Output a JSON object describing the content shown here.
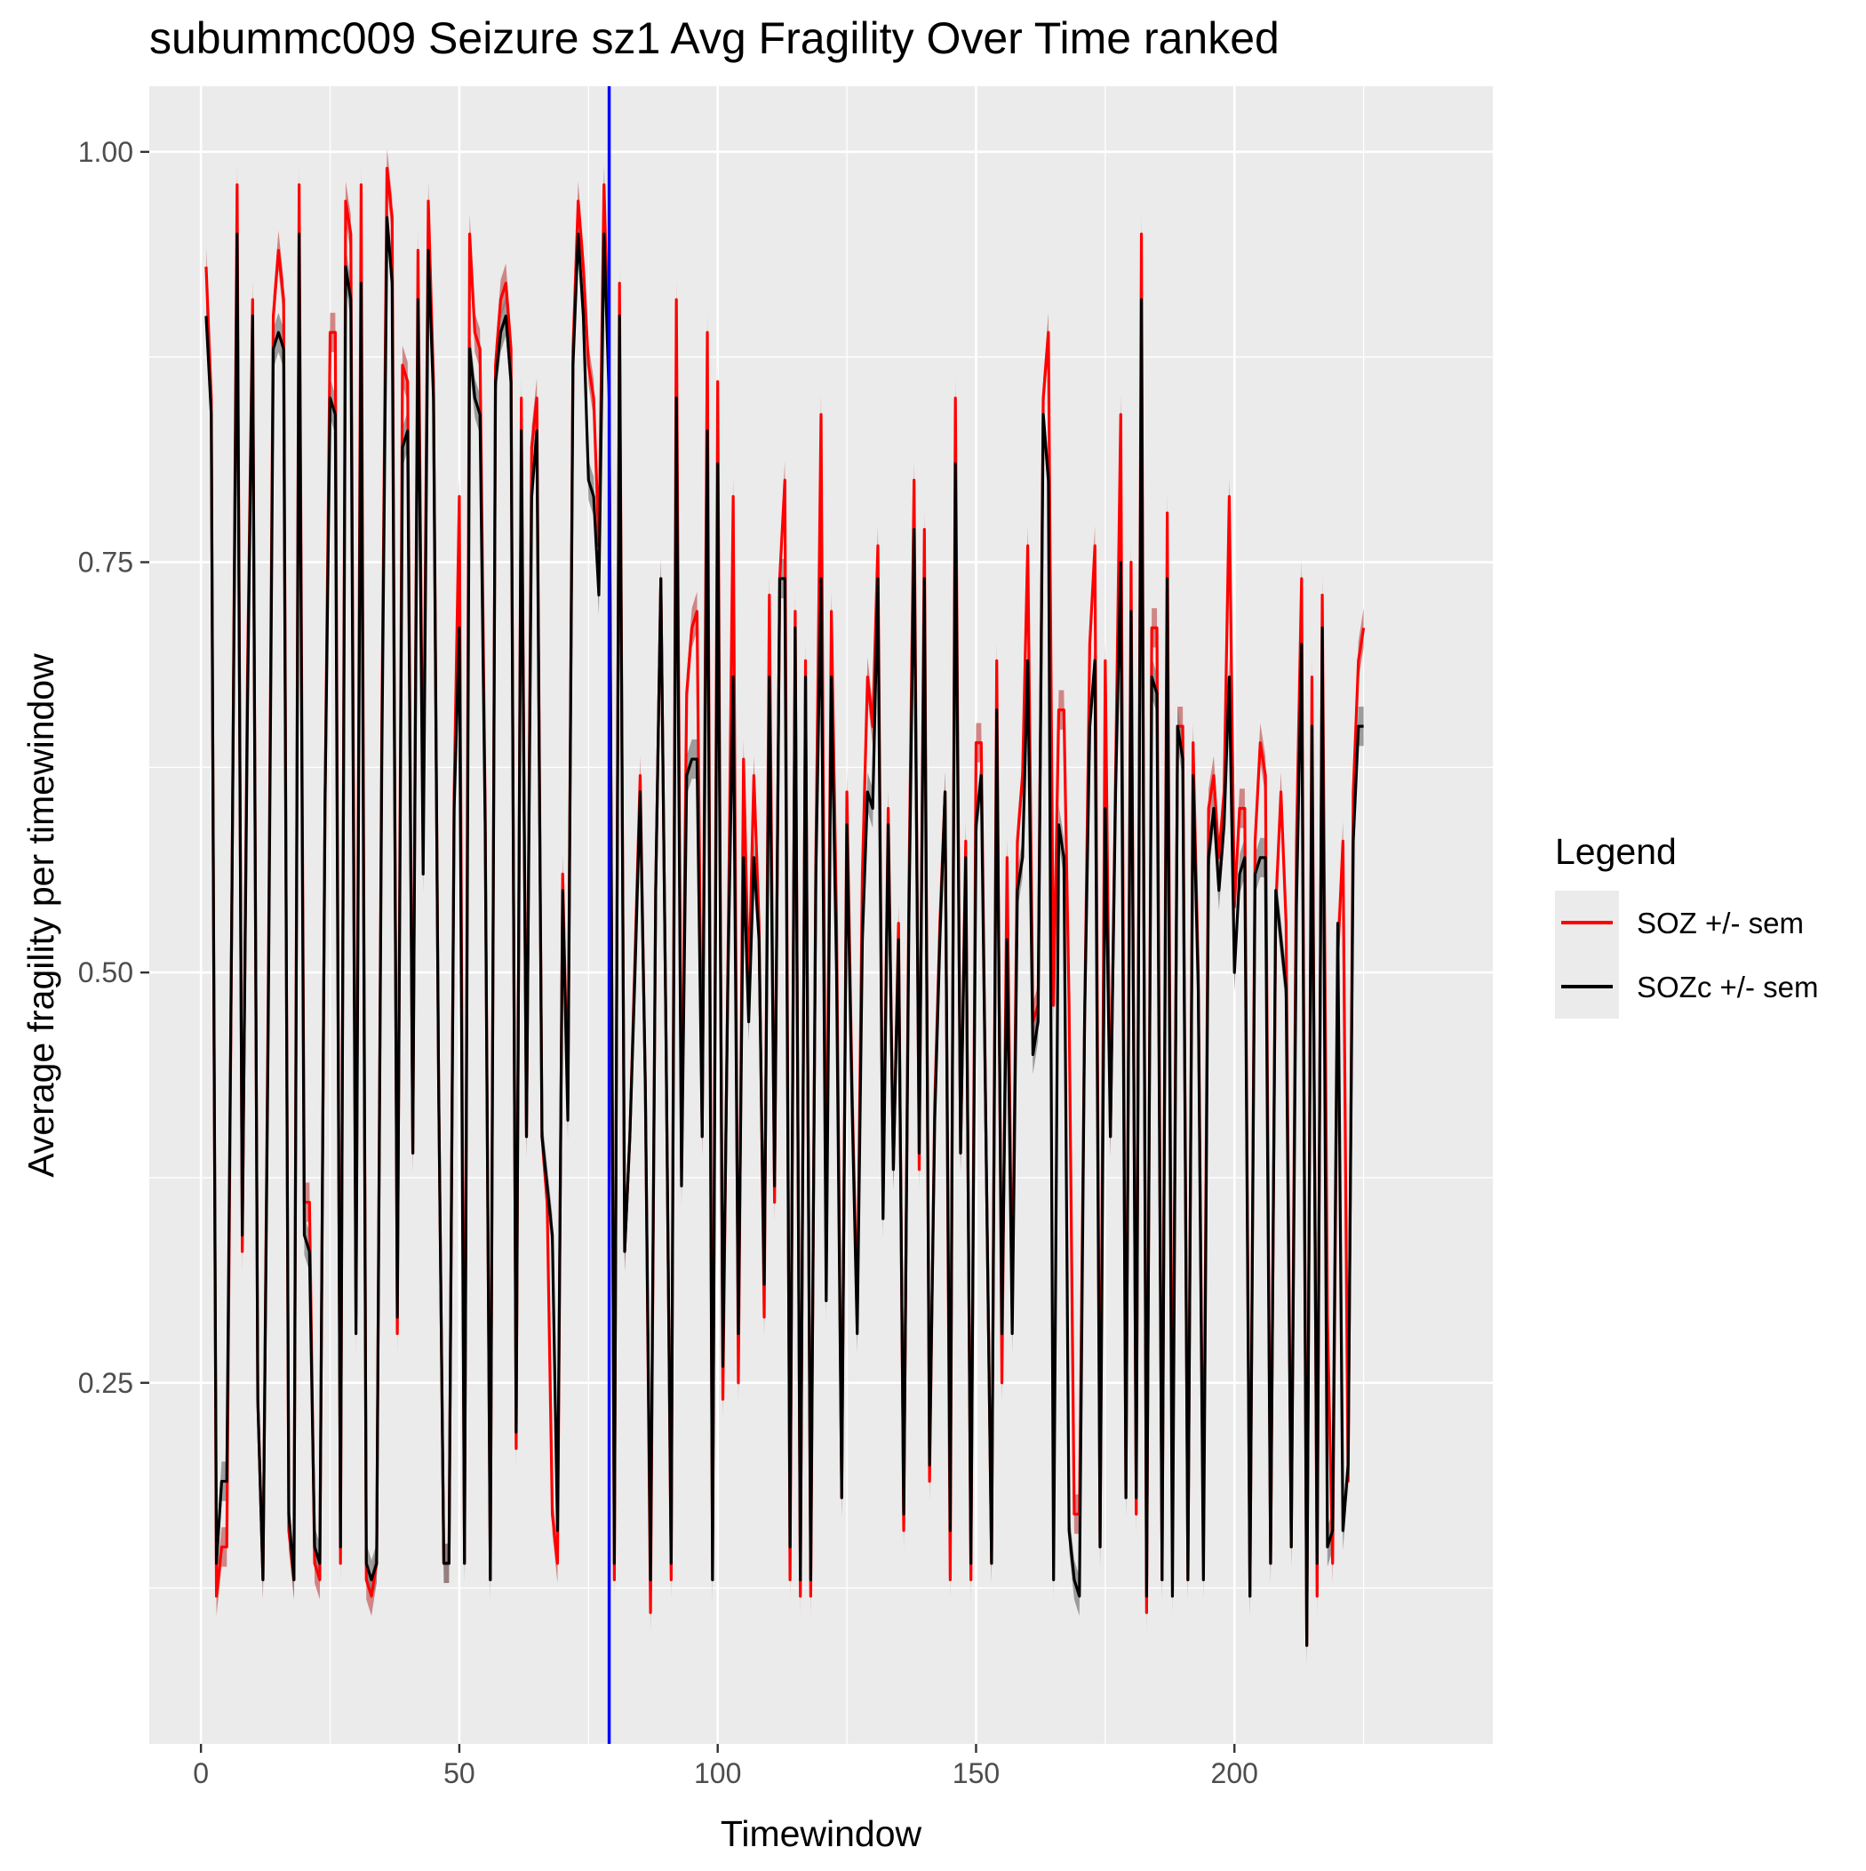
{
  "chart_data": {
    "type": "line",
    "title": "subummc009 Seizure sz1 Avg Fragility Over Time ranked",
    "xlabel": "Timewindow",
    "ylabel": "Average fragility per timewindow",
    "xlim": [
      -10,
      250
    ],
    "ylim": [
      0.03,
      1.04
    ],
    "x_ticks": [
      0,
      50,
      100,
      150,
      200
    ],
    "x_tick_labels": [
      "0",
      "50",
      "100",
      "150",
      "200"
    ],
    "y_ticks": [
      0.25,
      0.5,
      0.75,
      1.0
    ],
    "y_tick_labels": [
      "0.25",
      "0.50",
      "0.75",
      "1.00"
    ],
    "grid": true,
    "vline": {
      "x": 79,
      "color": "#0000ff"
    },
    "legend": {
      "title": "Legend",
      "position": "right",
      "items": [
        {
          "label": "SOZ +/- sem",
          "color": "#ff0000"
        },
        {
          "label": "SOZc +/- sem",
          "color": "#000000"
        }
      ]
    },
    "x_start": 1,
    "series": [
      {
        "name": "SOZ +/- sem",
        "color": "#ff0000",
        "band_color": "#c45a5a",
        "sem": 0.012,
        "values": [
          0.93,
          0.85,
          0.12,
          0.15,
          0.15,
          0.55,
          0.98,
          0.33,
          0.68,
          0.91,
          0.24,
          0.13,
          0.48,
          0.9,
          0.94,
          0.91,
          0.16,
          0.13,
          0.98,
          0.36,
          0.36,
          0.14,
          0.13,
          0.6,
          0.89,
          0.89,
          0.14,
          0.97,
          0.95,
          0.29,
          0.98,
          0.13,
          0.12,
          0.14,
          0.65,
          0.99,
          0.96,
          0.28,
          0.87,
          0.86,
          0.39,
          0.94,
          0.58,
          0.97,
          0.86,
          0.43,
          0.14,
          0.14,
          0.61,
          0.79,
          0.14,
          0.95,
          0.89,
          0.88,
          0.6,
          0.13,
          0.87,
          0.91,
          0.92,
          0.88,
          0.21,
          0.85,
          0.4,
          0.82,
          0.85,
          0.4,
          0.36,
          0.17,
          0.14,
          0.56,
          0.42,
          0.88,
          0.97,
          0.93,
          0.87,
          0.85,
          0.76,
          0.98,
          0.86,
          0.13,
          0.92,
          0.33,
          0.4,
          0.51,
          0.62,
          0.43,
          0.11,
          0.55,
          0.74,
          0.46,
          0.13,
          0.91,
          0.38,
          0.67,
          0.71,
          0.72,
          0.4,
          0.89,
          0.13,
          0.86,
          0.24,
          0.51,
          0.79,
          0.25,
          0.63,
          0.49,
          0.62,
          0.53,
          0.29,
          0.73,
          0.36,
          0.74,
          0.8,
          0.13,
          0.72,
          0.12,
          0.69,
          0.12,
          0.57,
          0.84,
          0.32,
          0.72,
          0.53,
          0.18,
          0.61,
          0.43,
          0.29,
          0.56,
          0.68,
          0.65,
          0.76,
          0.36,
          0.6,
          0.38,
          0.53,
          0.16,
          0.55,
          0.8,
          0.38,
          0.77,
          0.19,
          0.42,
          0.53,
          0.61,
          0.13,
          0.85,
          0.39,
          0.58,
          0.13,
          0.64,
          0.64,
          0.38,
          0.14,
          0.69,
          0.25,
          0.57,
          0.29,
          0.58,
          0.62,
          0.76,
          0.47,
          0.48,
          0.85,
          0.89,
          0.48,
          0.66,
          0.66,
          0.48,
          0.17,
          0.17,
          0.47,
          0.7,
          0.76,
          0.15,
          0.69,
          0.4,
          0.62,
          0.84,
          0.18,
          0.75,
          0.17,
          0.95,
          0.11,
          0.71,
          0.71,
          0.13,
          0.78,
          0.16,
          0.65,
          0.65,
          0.13,
          0.64,
          0.5,
          0.15,
          0.6,
          0.62,
          0.57,
          0.61,
          0.79,
          0.54,
          0.6,
          0.6,
          0.12,
          0.58,
          0.64,
          0.62,
          0.14,
          0.54,
          0.61,
          0.53,
          0.15,
          0.58,
          0.74,
          0.09,
          0.68,
          0.12,
          0.73,
          0.29,
          0.14,
          0.51,
          0.58,
          0.19,
          0.61,
          0.69,
          0.71
        ]
      },
      {
        "name": "SOZc +/- sem",
        "color": "#000000",
        "band_color": "#7a7a7a",
        "sem": 0.012,
        "values": [
          0.9,
          0.84,
          0.14,
          0.19,
          0.19,
          0.55,
          0.95,
          0.34,
          0.66,
          0.9,
          0.24,
          0.13,
          0.46,
          0.88,
          0.89,
          0.88,
          0.17,
          0.13,
          0.95,
          0.34,
          0.33,
          0.15,
          0.14,
          0.6,
          0.85,
          0.84,
          0.15,
          0.93,
          0.91,
          0.28,
          0.92,
          0.14,
          0.13,
          0.14,
          0.63,
          0.96,
          0.92,
          0.29,
          0.82,
          0.83,
          0.39,
          0.91,
          0.56,
          0.94,
          0.85,
          0.43,
          0.14,
          0.14,
          0.6,
          0.71,
          0.14,
          0.88,
          0.85,
          0.84,
          0.59,
          0.13,
          0.86,
          0.89,
          0.9,
          0.86,
          0.22,
          0.83,
          0.4,
          0.79,
          0.83,
          0.4,
          0.37,
          0.34,
          0.16,
          0.55,
          0.41,
          0.87,
          0.95,
          0.9,
          0.8,
          0.79,
          0.73,
          0.95,
          0.85,
          0.14,
          0.9,
          0.33,
          0.4,
          0.5,
          0.61,
          0.43,
          0.13,
          0.55,
          0.74,
          0.46,
          0.14,
          0.85,
          0.37,
          0.62,
          0.63,
          0.63,
          0.4,
          0.83,
          0.13,
          0.81,
          0.26,
          0.5,
          0.68,
          0.28,
          0.57,
          0.47,
          0.57,
          0.52,
          0.31,
          0.68,
          0.37,
          0.74,
          0.74,
          0.15,
          0.71,
          0.13,
          0.68,
          0.13,
          0.56,
          0.74,
          0.3,
          0.68,
          0.5,
          0.18,
          0.59,
          0.42,
          0.28,
          0.52,
          0.61,
          0.6,
          0.74,
          0.35,
          0.59,
          0.38,
          0.52,
          0.17,
          0.53,
          0.77,
          0.39,
          0.74,
          0.2,
          0.41,
          0.52,
          0.61,
          0.16,
          0.81,
          0.39,
          0.57,
          0.14,
          0.59,
          0.62,
          0.38,
          0.14,
          0.66,
          0.28,
          0.52,
          0.28,
          0.55,
          0.57,
          0.69,
          0.45,
          0.47,
          0.84,
          0.8,
          0.13,
          0.59,
          0.57,
          0.16,
          0.13,
          0.12,
          0.47,
          0.65,
          0.69,
          0.15,
          0.6,
          0.4,
          0.61,
          0.75,
          0.18,
          0.72,
          0.18,
          0.91,
          0.12,
          0.68,
          0.67,
          0.13,
          0.74,
          0.12,
          0.65,
          0.63,
          0.13,
          0.62,
          0.49,
          0.13,
          0.57,
          0.6,
          0.55,
          0.59,
          0.68,
          0.5,
          0.56,
          0.57,
          0.12,
          0.56,
          0.57,
          0.57,
          0.14,
          0.55,
          0.52,
          0.49,
          0.15,
          0.54,
          0.7,
          0.09,
          0.65,
          0.14,
          0.71,
          0.15,
          0.16,
          0.53,
          0.16,
          0.2,
          0.58,
          0.65,
          0.65
        ]
      }
    ]
  }
}
